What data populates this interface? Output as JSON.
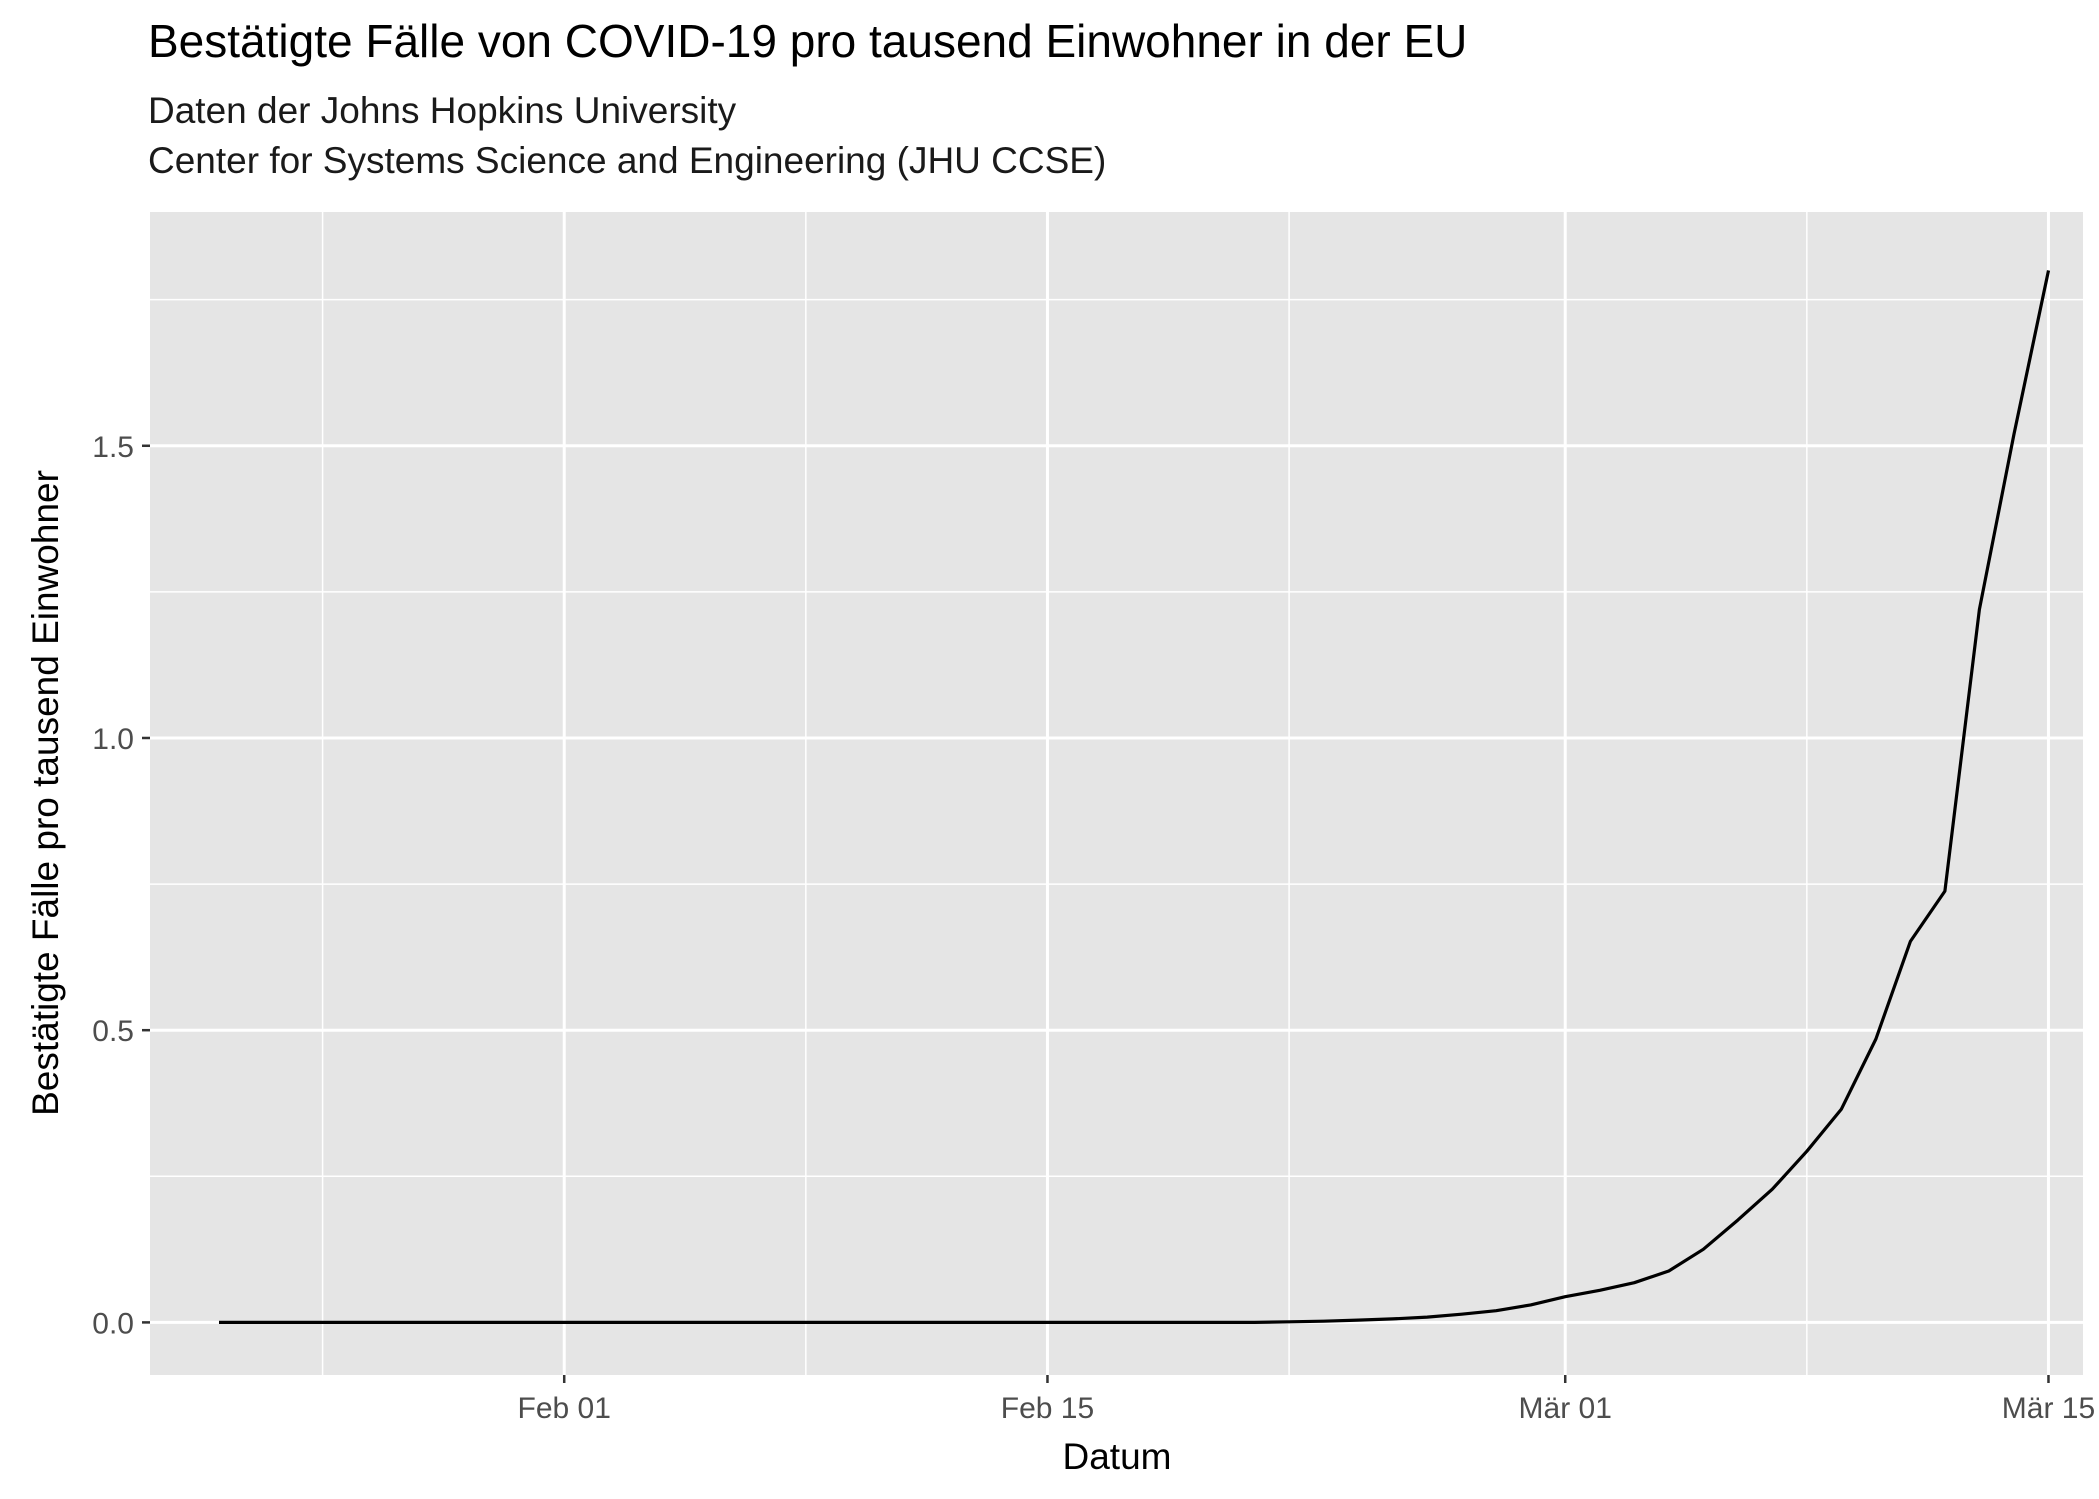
{
  "chart_data": {
    "type": "line",
    "title": "Bestätigte Fälle von COVID-19 pro tausend Einwohner in der EU",
    "subtitle": [
      "Daten der Johns Hopkins University",
      "Center for Systems Science and Engineering (JHU CCSE)"
    ],
    "xlabel": "Datum",
    "ylabel": "Bestätigte Fälle pro tausend Einwohner",
    "x_ticks": [
      "Feb 01",
      "Feb 15",
      "Mär 01",
      "Mär 15"
    ],
    "y_ticks": [
      "0.0",
      "0.5",
      "1.0",
      "1.5"
    ],
    "xlim": [
      "2020-01-20",
      "2020-03-16"
    ],
    "ylim": [
      -0.09,
      1.9
    ],
    "grid": true,
    "background": "#e5e5e5",
    "line_color": "#000000",
    "x": [
      "2020-01-22",
      "2020-01-23",
      "2020-01-24",
      "2020-01-25",
      "2020-01-26",
      "2020-01-27",
      "2020-01-28",
      "2020-01-29",
      "2020-01-30",
      "2020-01-31",
      "2020-02-01",
      "2020-02-02",
      "2020-02-03",
      "2020-02-04",
      "2020-02-05",
      "2020-02-06",
      "2020-02-07",
      "2020-02-08",
      "2020-02-09",
      "2020-02-10",
      "2020-02-11",
      "2020-02-12",
      "2020-02-13",
      "2020-02-14",
      "2020-02-15",
      "2020-02-16",
      "2020-02-17",
      "2020-02-18",
      "2020-02-19",
      "2020-02-20",
      "2020-02-21",
      "2020-02-22",
      "2020-02-23",
      "2020-02-24",
      "2020-02-25",
      "2020-02-26",
      "2020-02-27",
      "2020-02-28",
      "2020-02-29",
      "2020-03-01",
      "2020-03-02",
      "2020-03-03",
      "2020-03-04",
      "2020-03-05",
      "2020-03-06",
      "2020-03-07",
      "2020-03-08",
      "2020-03-09",
      "2020-03-10",
      "2020-03-11",
      "2020-03-12",
      "2020-03-13",
      "2020-03-14",
      "2020-03-15"
    ],
    "y": [
      0.0,
      0.0,
      0.0,
      0.0,
      0.0,
      0.0,
      0.0,
      0.0,
      0.0,
      0.0,
      0.0,
      0.0,
      0.0,
      0.0,
      0.0,
      0.0,
      0.0,
      0.0,
      0.0,
      0.0,
      0.0,
      0.0,
      0.0,
      0.0,
      0.0,
      0.0,
      0.0,
      0.0,
      0.0,
      0.0,
      0.0,
      0.001,
      0.002,
      0.004,
      0.006,
      0.009,
      0.014,
      0.02,
      0.03,
      0.044,
      0.055,
      0.068,
      0.088,
      0.125,
      0.175,
      0.228,
      0.293,
      0.365,
      0.485,
      0.652,
      0.738,
      1.22,
      1.52,
      1.8
    ]
  }
}
